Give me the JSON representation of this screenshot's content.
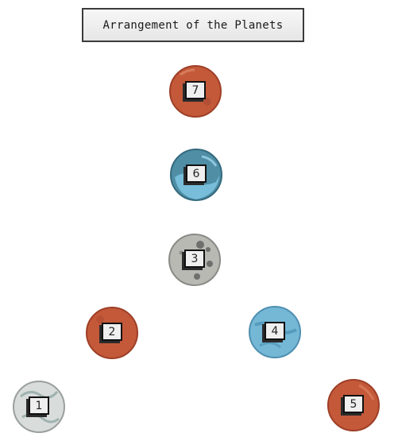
{
  "title": "Arrangement of the Planets",
  "colors": {
    "rust": "#c4593a",
    "rust_dark": "#9e3f27",
    "teal": "#4f8ea5",
    "teal_dark": "#356a7e",
    "sky": "#74b8d6",
    "sky_dark": "#4f8fb0",
    "gray": "#b9b9b4",
    "gray_dark": "#8a8a86",
    "pearl": "#d8dcda"
  },
  "planets": [
    {
      "label": "7",
      "icon": "rust-planet-icon"
    },
    {
      "label": "6",
      "icon": "teal-swirl-planet-icon"
    },
    {
      "label": "3",
      "icon": "gray-cratered-planet-icon"
    },
    {
      "label": "2",
      "icon": "rust-planet-icon"
    },
    {
      "label": "4",
      "icon": "blue-swirl-planet-icon"
    },
    {
      "label": "1",
      "icon": "pearl-swirl-planet-icon"
    },
    {
      "label": "5",
      "icon": "rust-planet-icon"
    }
  ]
}
